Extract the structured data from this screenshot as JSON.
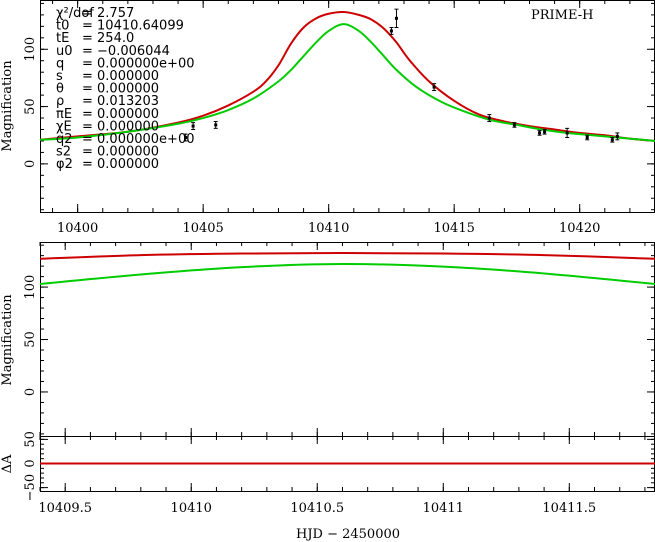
{
  "chart_data": [
    {
      "panel": "top",
      "type": "line",
      "title": "PRIME-H",
      "xlabel": "",
      "ylabel": "Magnification",
      "xlim": [
        10398.5,
        10423.0
      ],
      "ylim": [
        -42,
        143
      ],
      "x_ticks": [
        10400,
        10405,
        10410,
        10415,
        10420
      ],
      "y_ticks": [
        0,
        50,
        100
      ],
      "parameters": [
        {
          "name": "χ²/dof",
          "value": "= 2.757"
        },
        {
          "name": "t0",
          "value": "= 10410.64099"
        },
        {
          "name": "tE",
          "value": "= 254.0"
        },
        {
          "name": "u0",
          "value": "= −0.006044"
        },
        {
          "name": "q",
          "value": "= 0.000000e+00"
        },
        {
          "name": "s",
          "value": "= 0.000000"
        },
        {
          "name": "θ",
          "value": "= 0.000000"
        },
        {
          "name": "ρ",
          "value": "= 0.013203"
        },
        {
          "name": "πE",
          "value": "= 0.000000"
        },
        {
          "name": "χE",
          "value": "= 0.000000"
        },
        {
          "name": "q2",
          "value": "= 0.000000e+00"
        },
        {
          "name": "s2",
          "value": "= 0.000000"
        },
        {
          "name": "φ2",
          "value": "= 0.000000"
        }
      ],
      "series": [
        {
          "name": "model-red",
          "color": "#cc0000",
          "x": [
            10398.5,
            10400,
            10402,
            10404,
            10405,
            10406,
            10407,
            10407.5,
            10408,
            10408.5,
            10409,
            10409.5,
            10410,
            10410.6,
            10411.2,
            10411.7,
            10412.2,
            10412.7,
            10413.2,
            10414,
            10415,
            10416,
            10417,
            10418,
            10419,
            10420,
            10421,
            10422,
            10423
          ],
          "y": [
            21,
            24,
            28,
            36,
            42,
            51,
            63,
            72,
            86,
            105,
            119,
            127,
            131,
            132.5,
            130,
            126,
            118,
            106,
            91,
            72,
            55,
            43,
            37,
            33,
            30,
            27,
            25,
            22,
            20
          ]
        },
        {
          "name": "model-green",
          "color": "#00cc00",
          "x": [
            10398.5,
            10400,
            10402,
            10404,
            10405,
            10406,
            10407,
            10408,
            10408.5,
            10409,
            10409.5,
            10410,
            10410.6,
            10411.2,
            10411.7,
            10412.2,
            10412.7,
            10413.5,
            10414.5,
            10415.5,
            10416.5,
            10417.5,
            10418.5,
            10419.5,
            10420.5,
            10421.5,
            10422.5,
            10423
          ],
          "y": [
            21,
            23,
            28,
            35,
            40,
            47,
            57,
            72,
            82,
            94,
            106,
            116,
            122,
            116,
            106,
            94,
            82,
            67,
            54,
            45,
            38,
            34,
            30,
            27,
            25,
            23,
            21,
            20
          ]
        }
      ],
      "points": {
        "name": "PRIME-H data",
        "color": "#000000",
        "x": [
          10404.3,
          10404.6,
          10405.5,
          10412.5,
          10412.7,
          10414.2,
          10416.4,
          10417.4,
          10418.4,
          10418.6,
          10419.5,
          10420.3,
          10421.3,
          10421.5
        ],
        "y": [
          23,
          33,
          34,
          116,
          127,
          67,
          40,
          34,
          27,
          28,
          27,
          23,
          21,
          24
        ],
        "err": [
          3,
          3,
          3,
          3,
          8,
          3,
          3,
          2,
          2,
          2,
          4,
          2,
          2,
          3
        ]
      }
    },
    {
      "panel": "middle",
      "type": "line",
      "xlabel": "",
      "ylabel": "Magnification",
      "xlim": [
        10409.4,
        10411.84
      ],
      "ylim": [
        -42,
        143
      ],
      "y_ticks": [
        0,
        50,
        100
      ],
      "series": [
        {
          "name": "model-red",
          "color": "#cc0000",
          "x": [
            10409.4,
            10409.8,
            10410.2,
            10410.6,
            10411.0,
            10411.4,
            10411.84
          ],
          "y": [
            127,
            130.5,
            132,
            132.5,
            132,
            130.5,
            127
          ]
        },
        {
          "name": "model-green",
          "color": "#00cc00",
          "x": [
            10409.4,
            10409.8,
            10410.2,
            10410.6,
            10411.0,
            10411.4,
            10411.84
          ],
          "y": [
            103,
            112,
            119,
            122,
            119.5,
            113,
            103
          ]
        }
      ]
    },
    {
      "panel": "bottom",
      "type": "line",
      "xlabel": "HJD − 2450000",
      "ylabel": "ΔA",
      "xlim": [
        10409.4,
        10411.84
      ],
      "ylim": [
        -57,
        57
      ],
      "x_ticks": [
        10409.5,
        10410,
        10410.5,
        10411,
        10411.5
      ],
      "y_ticks": [
        -50,
        0,
        50
      ],
      "series": [
        {
          "name": "residual-zero",
          "color": "#cc0000",
          "x": [
            10409.4,
            10411.84
          ],
          "y": [
            0,
            0
          ]
        }
      ]
    }
  ]
}
